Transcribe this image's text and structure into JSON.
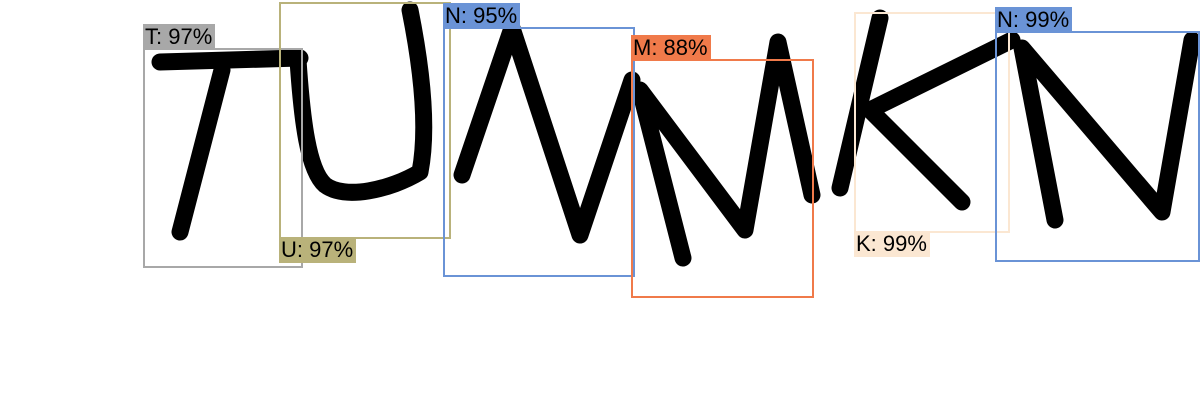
{
  "detections": [
    {
      "letter": "T",
      "label": "T: 97%",
      "confidence": 0.97,
      "color": "#a8a8a8"
    },
    {
      "letter": "U",
      "label": "U: 97%",
      "confidence": 0.97,
      "color": "#b9b27a"
    },
    {
      "letter": "N",
      "label": "N: 95%",
      "confidence": 0.95,
      "color": "#6a93d6"
    },
    {
      "letter": "M",
      "label": "M: 88%",
      "confidence": 0.88,
      "color": "#f07a4a"
    },
    {
      "letter": "K",
      "label": "K: 99%",
      "confidence": 0.99,
      "color": "#fbe7d2"
    },
    {
      "letter": "N",
      "label": "N: 99%",
      "confidence": 0.99,
      "color": "#6a93d6"
    }
  ]
}
